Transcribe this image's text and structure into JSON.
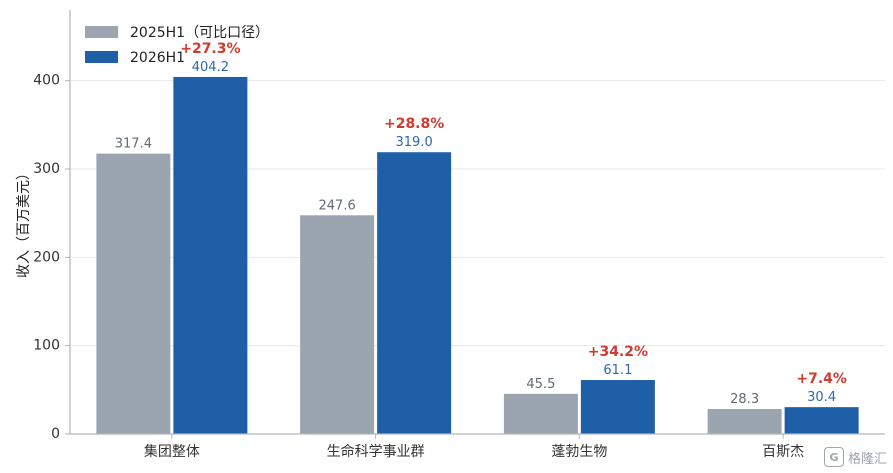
{
  "chart_data": {
    "type": "bar",
    "title": "",
    "xlabel": "",
    "ylabel": "收入（百万美元）",
    "ylim": [
      0,
      480
    ],
    "yticks": [
      0,
      100,
      200,
      300,
      400
    ],
    "grid": "horizontal",
    "legend_position": "top-left",
    "categories": [
      "集团整体",
      "生命科学事业群",
      "蓬勃生物",
      "百斯杰"
    ],
    "series": [
      {
        "name": "2025H1（可比口径）",
        "values": [
          317.4,
          247.6,
          45.5,
          28.3
        ],
        "labels": [
          "317.4",
          "247.6",
          "45.5",
          "28.3"
        ],
        "color": "#9ba5b0"
      },
      {
        "name": "2026H1",
        "values": [
          404.2,
          319.0,
          61.1,
          30.4
        ],
        "labels": [
          "404.2",
          "319.0",
          "61.1",
          "30.4"
        ],
        "color": "#1f5fa8"
      }
    ],
    "growth_labels": [
      "+27.3%",
      "+28.8%",
      "+34.2%",
      "+7.4%"
    ],
    "colors": {
      "growth": "#d23a2e",
      "grid": "#e6e8ea",
      "axis": "#b0b6bc"
    }
  },
  "watermark": {
    "icon_text": "G",
    "text": "格隆汇"
  }
}
